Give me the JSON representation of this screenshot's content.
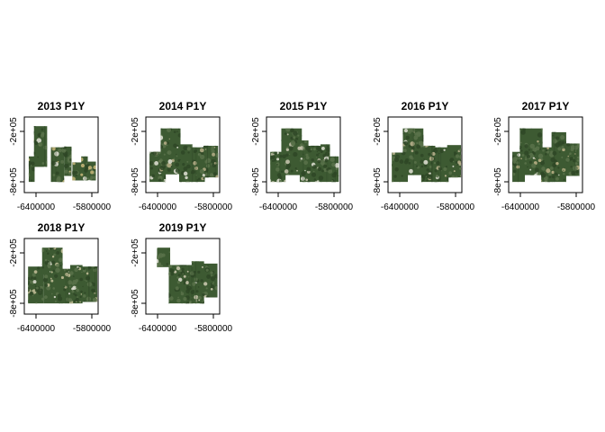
{
  "figure": {
    "panels": [
      {
        "title": "2013 P1Y",
        "tiles": [
          [
            0.13,
            0.12,
            0.31,
            0.66
          ],
          [
            0.36,
            0.4,
            0.54,
            0.86
          ],
          [
            0.54,
            0.39,
            0.64,
            0.78
          ],
          [
            0.65,
            0.6,
            0.78,
            0.84
          ],
          [
            0.77,
            0.52,
            0.86,
            0.84
          ],
          [
            0.86,
            0.59,
            0.97,
            0.84
          ],
          [
            0.06,
            0.52,
            0.14,
            0.86
          ]
        ],
        "accent": "#c8b77a"
      },
      {
        "title": "2014 P1Y",
        "tiles": [
          [
            0.05,
            0.46,
            0.27,
            0.86
          ],
          [
            0.2,
            0.15,
            0.47,
            0.76
          ],
          [
            0.45,
            0.36,
            0.63,
            0.86
          ],
          [
            0.61,
            0.4,
            0.8,
            0.86
          ],
          [
            0.78,
            0.38,
            0.98,
            0.8
          ]
        ],
        "accent": "#b8b08a"
      },
      {
        "title": "2015 P1Y",
        "tiles": [
          [
            0.05,
            0.46,
            0.26,
            0.86
          ],
          [
            0.2,
            0.15,
            0.48,
            0.77
          ],
          [
            0.45,
            0.31,
            0.57,
            0.86
          ],
          [
            0.55,
            0.38,
            0.75,
            0.86
          ],
          [
            0.73,
            0.36,
            0.86,
            0.86
          ],
          [
            0.86,
            0.52,
            0.98,
            0.86
          ]
        ],
        "accent": "#c9c7b0"
      },
      {
        "title": "2016 P1Y",
        "tiles": [
          [
            0.05,
            0.47,
            0.27,
            0.86
          ],
          [
            0.2,
            0.15,
            0.48,
            0.77
          ],
          [
            0.45,
            0.38,
            0.64,
            0.86
          ],
          [
            0.62,
            0.4,
            0.82,
            0.86
          ],
          [
            0.8,
            0.37,
            0.99,
            0.8
          ]
        ],
        "accent": "#bdb590"
      },
      {
        "title": "2017 P1Y",
        "tiles": [
          [
            0.05,
            0.46,
            0.22,
            0.86
          ],
          [
            0.15,
            0.15,
            0.46,
            0.77
          ],
          [
            0.44,
            0.4,
            0.6,
            0.86
          ],
          [
            0.58,
            0.2,
            0.78,
            0.86
          ],
          [
            0.76,
            0.35,
            0.96,
            0.78
          ]
        ],
        "accent": "#c0b58a"
      },
      {
        "title": "2018 P1Y",
        "tiles": [
          [
            0.05,
            0.37,
            0.26,
            0.86
          ],
          [
            0.24,
            0.12,
            0.52,
            0.48
          ],
          [
            0.26,
            0.4,
            0.52,
            0.86
          ],
          [
            0.5,
            0.4,
            0.64,
            0.86
          ],
          [
            0.62,
            0.35,
            0.79,
            0.86
          ],
          [
            0.77,
            0.37,
            0.99,
            0.84
          ]
        ],
        "accent": "#c7c29b"
      },
      {
        "title": "2019 P1Y",
        "tiles": [
          [
            0.15,
            0.12,
            0.33,
            0.38
          ],
          [
            0.31,
            0.35,
            0.5,
            0.86
          ],
          [
            0.48,
            0.35,
            0.64,
            0.86
          ],
          [
            0.62,
            0.3,
            0.79,
            0.86
          ],
          [
            0.77,
            0.33,
            0.97,
            0.78
          ]
        ],
        "accent": "#d0cdb4"
      }
    ],
    "x_ticks": [
      "-6400000",
      "-5800000"
    ],
    "y_ticks": [
      "-2e+05",
      "-8e+05"
    ],
    "colors": {
      "frame": "#000000",
      "vegetation_dark": "#2e4626",
      "vegetation_mid": "#3d5a32",
      "vegetation_light": "#59724a",
      "cloud": "#e3e3d7"
    }
  }
}
